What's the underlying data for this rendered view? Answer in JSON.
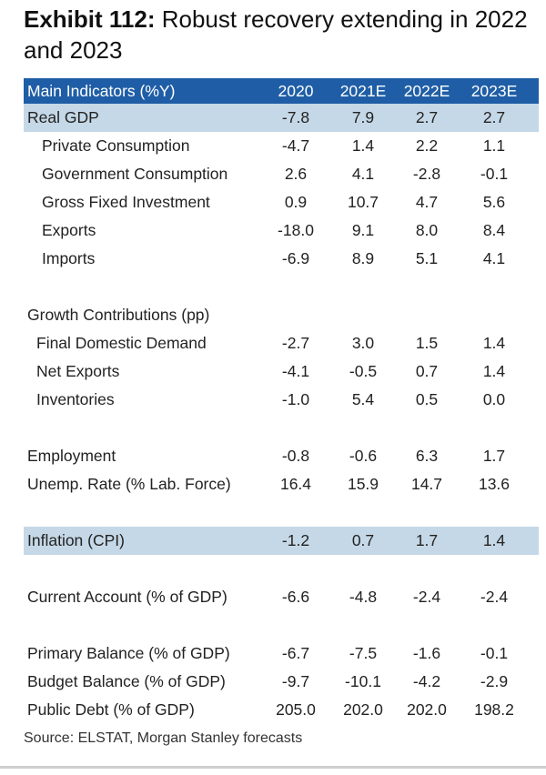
{
  "title": {
    "bold": "Exhibit 112:",
    "text": " Robust recovery extending in 2022 and 2023"
  },
  "table": {
    "header": {
      "label": "Main Indicators (%Y)",
      "cols": [
        "2020",
        "2021E",
        "2022E",
        "2023E"
      ]
    },
    "rows": [
      {
        "label": "Real GDP",
        "values": [
          "-7.8",
          "7.9",
          "2.7",
          "2.7"
        ]
      },
      {
        "label": "Private Consumption",
        "values": [
          "-4.7",
          "1.4",
          "2.2",
          "1.1"
        ]
      },
      {
        "label": "Government Consumption",
        "values": [
          "2.6",
          "4.1",
          "-2.8",
          "-0.1"
        ]
      },
      {
        "label": "Gross Fixed Investment",
        "values": [
          "0.9",
          "10.7",
          "4.7",
          "5.6"
        ]
      },
      {
        "label": "Exports",
        "values": [
          "-18.0",
          "9.1",
          "8.0",
          "8.4"
        ]
      },
      {
        "label": "Imports",
        "values": [
          "-6.9",
          "8.9",
          "5.1",
          "4.1"
        ]
      },
      {
        "label": "Growth Contributions (pp)",
        "values": [
          "",
          "",
          "",
          ""
        ]
      },
      {
        "label": "Final Domestic Demand",
        "values": [
          "-2.7",
          "3.0",
          "1.5",
          "1.4"
        ]
      },
      {
        "label": "Net Exports",
        "values": [
          "-4.1",
          "-0.5",
          "0.7",
          "1.4"
        ]
      },
      {
        "label": "Inventories",
        "values": [
          "-1.0",
          "5.4",
          "0.5",
          "0.0"
        ]
      },
      {
        "label": "Employment",
        "values": [
          "-0.8",
          "-0.6",
          "6.3",
          "1.7"
        ]
      },
      {
        "label": "Unemp. Rate (% Lab. Force)",
        "values": [
          "16.4",
          "15.9",
          "14.7",
          "13.6"
        ]
      },
      {
        "label": "Inflation (CPI)",
        "values": [
          "-1.2",
          "0.7",
          "1.7",
          "1.4"
        ]
      },
      {
        "label": "Current Account (% of GDP)",
        "values": [
          "-6.6",
          "-4.8",
          "-2.4",
          "-2.4"
        ]
      },
      {
        "label": "Primary Balance (% of GDP)",
        "values": [
          "-6.7",
          "-7.5",
          "-1.6",
          "-0.1"
        ]
      },
      {
        "label": "Budget Balance (% of GDP)",
        "values": [
          "-9.7",
          "-10.1",
          "-4.2",
          "-2.9"
        ]
      },
      {
        "label": "Public Debt (% of GDP)",
        "values": [
          "205.0",
          "202.0",
          "202.0",
          "198.2"
        ]
      }
    ]
  },
  "source": "Source: ELSTAT, Morgan Stanley forecasts",
  "colors": {
    "header_bg": "#1f5ea6",
    "shade_bg": "#c5d8e7"
  }
}
